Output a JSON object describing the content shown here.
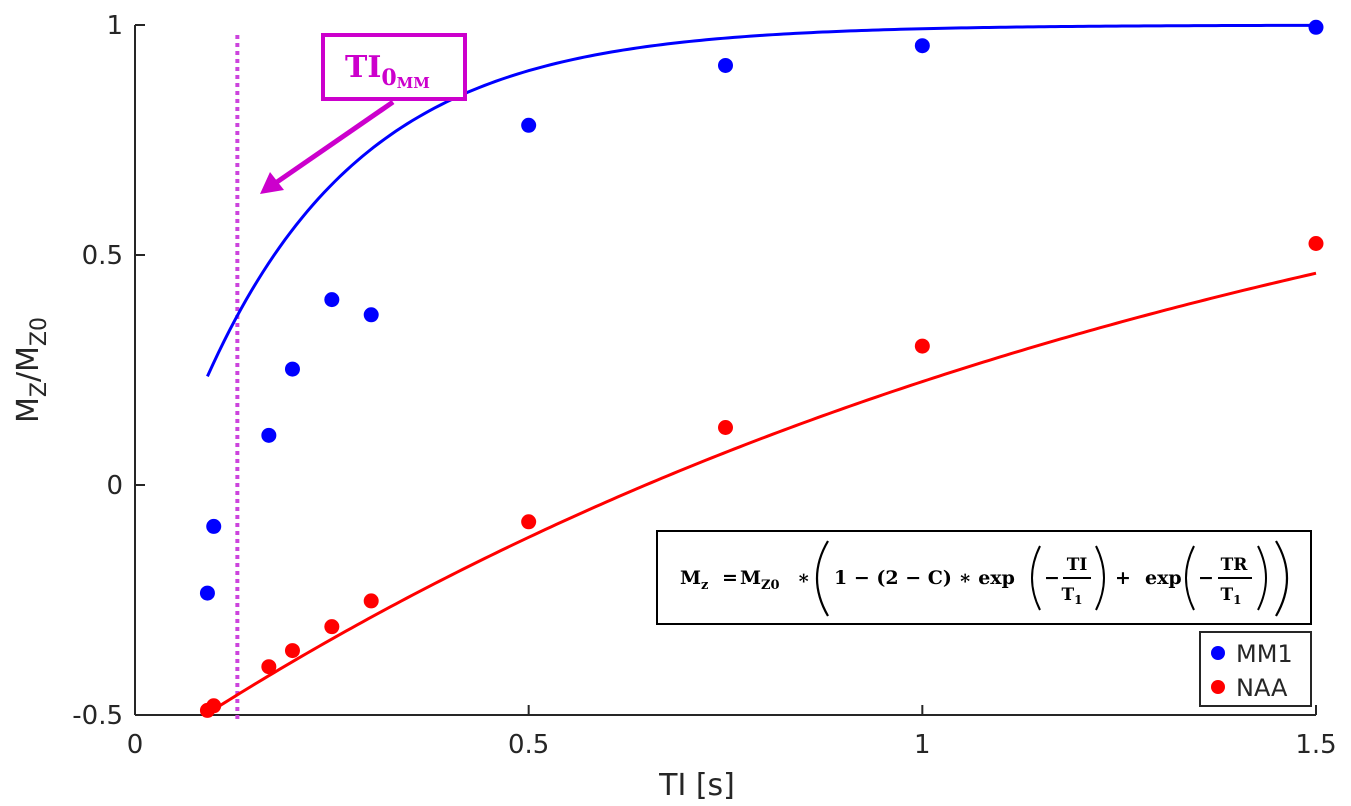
{
  "chart_data": {
    "type": "scatter",
    "xlabel": "TI [s]",
    "ylabel_main": "M",
    "ylabel_sub1": "Z",
    "ylabel_mid": "/M",
    "ylabel_sub2": "Z0",
    "xlim": [
      0,
      1.5
    ],
    "ylim": [
      -0.5,
      1
    ],
    "x_ticks": [
      0,
      0.5,
      1,
      1.5
    ],
    "x_tick_labels": [
      "0",
      "0.5",
      "1",
      "1.5"
    ],
    "y_ticks": [
      -0.5,
      0,
      0.5,
      1
    ],
    "y_tick_labels": [
      "-0.5",
      "0",
      "0.5",
      "1"
    ],
    "grid": false,
    "legend_position": "bottom-right",
    "series": [
      {
        "name": "MM1",
        "color": "#0000ff",
        "points": [
          {
            "x": 0.092,
            "y": -0.235
          },
          {
            "x": 0.1,
            "y": -0.09
          },
          {
            "x": 0.17,
            "y": 0.108
          },
          {
            "x": 0.2,
            "y": 0.252
          },
          {
            "x": 0.25,
            "y": 0.403
          },
          {
            "x": 0.3,
            "y": 0.37
          },
          {
            "x": 0.5,
            "y": 0.782
          },
          {
            "x": 0.75,
            "y": 0.912
          },
          {
            "x": 1.0,
            "y": 0.955
          },
          {
            "x": 1.5,
            "y": 0.995
          }
        ],
        "fit": {
          "T1": 0.2,
          "C": 1.21,
          "x_start": 0.092,
          "x_end": 1.5
        }
      },
      {
        "name": "NAA",
        "color": "#ff0000",
        "points": [
          {
            "x": 0.092,
            "y": -0.49
          },
          {
            "x": 0.1,
            "y": -0.48
          },
          {
            "x": 0.17,
            "y": -0.395
          },
          {
            "x": 0.2,
            "y": -0.36
          },
          {
            "x": 0.25,
            "y": -0.308
          },
          {
            "x": 0.3,
            "y": -0.252
          },
          {
            "x": 0.5,
            "y": -0.08
          },
          {
            "x": 0.75,
            "y": 0.125
          },
          {
            "x": 1.0,
            "y": 0.302
          },
          {
            "x": 1.5,
            "y": 0.525
          }
        ],
        "fit": {
          "T1": 1.38,
          "C": 1.6,
          "x_start": 0.092,
          "x_end": 1.5
        }
      }
    ],
    "annotations": {
      "vline": {
        "x": 0.13,
        "color": "#cc44dd",
        "style": "dotted"
      },
      "label_main": "TI",
      "label_sub": "0",
      "label_subsub": "MM",
      "label_color": "#cc00cc",
      "arrow_color": "#cc00cc"
    },
    "equation": {
      "lhs_main": "M",
      "lhs_sub": "z",
      "equals": "=",
      "rhs_m": "M",
      "rhs_m_sub": "Z0",
      "star1": "∗",
      "term1": "1 − (2 − C) ∗ exp",
      "minus1": "−",
      "frac1_num": "TI",
      "frac1_den_main": "T",
      "frac1_den_sub": "1",
      "plus": "+",
      "term2": "exp",
      "minus2": "−",
      "frac2_num": "TR",
      "frac2_den_main": "T",
      "frac2_den_sub": "1"
    }
  }
}
